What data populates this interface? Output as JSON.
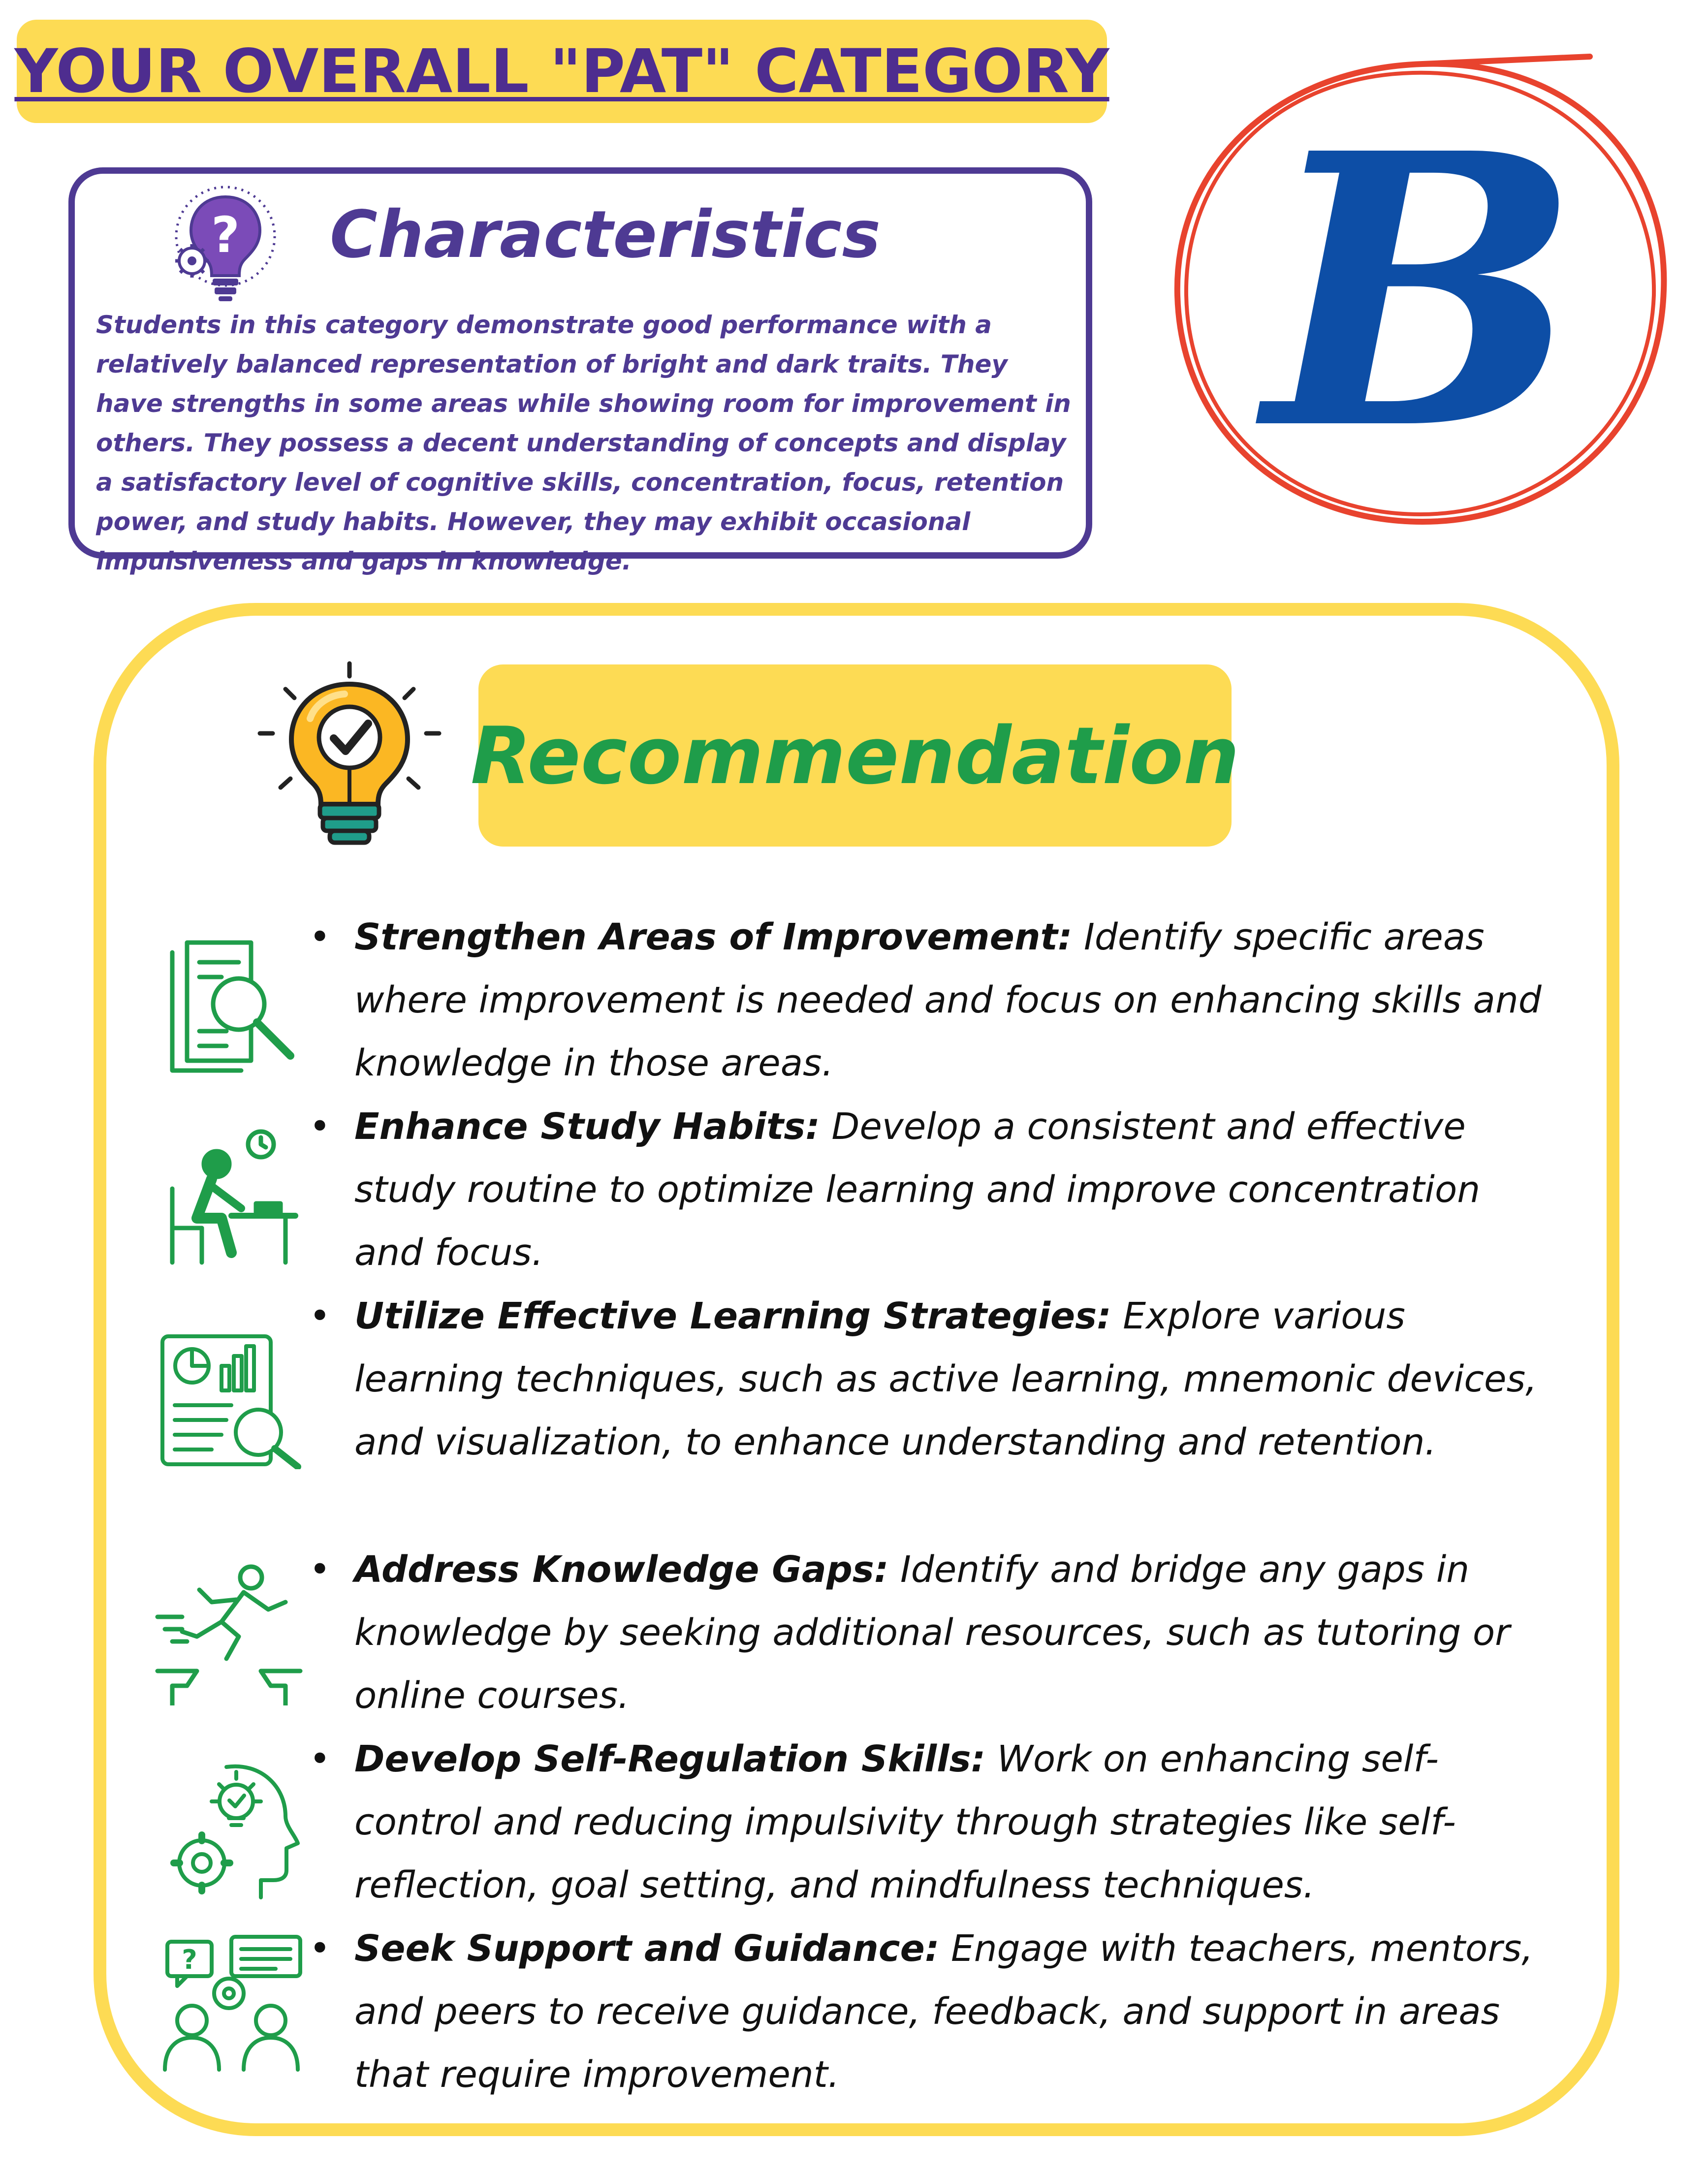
{
  "header": {
    "title": "YOUR OVERALL \"PAT\" CATEGORY"
  },
  "grade": {
    "letter": "B",
    "letter_color": "#0D4EA6",
    "circle_color": "#E8432E"
  },
  "characteristics": {
    "title": "Characteristics",
    "icon": "lightbulb-question-gear-icon",
    "body": "Students in this category demonstrate good performance with a relatively balanced representation of bright and dark traits. They have strengths in some areas while showing room for improvement in others. They possess a decent understanding of concepts and display a satisfactory level of cognitive skills, concentration, focus, retention power, and study habits. However, they may exhibit occasional impulsiveness and gaps in knowledge."
  },
  "recommendation": {
    "title": "Recommendation",
    "icon": "lightbulb-checkmark-icon",
    "items": [
      {
        "title": "Strengthen Areas of Improvement:",
        "text": " Identify specific areas where improvement is needed and focus on enhancing skills and knowledge in those areas.",
        "icon": "document-magnifier-icon"
      },
      {
        "title": "Enhance Study Habits:",
        "text": " Develop a consistent and effective study routine to optimize learning and improve concentration and focus.",
        "icon": "student-at-desk-clock-icon"
      },
      {
        "title": "Utilize Effective Learning Strategies:",
        "text": " Explore various learning techniques, such as active learning, mnemonic devices, and visualization, to enhance understanding and retention.",
        "icon": "report-chart-magnifier-icon"
      },
      {
        "title": "Address Knowledge Gaps:",
        "text": " Identify and bridge any gaps in knowledge by seeking additional resources, such as tutoring or online courses.",
        "icon": "person-jumping-gap-icon"
      },
      {
        "title": "Develop Self-Regulation Skills:",
        "text": " Work on enhancing self-control and reducing impulsivity through strategies like self-reflection, goal setting, and mindfulness techniques.",
        "icon": "head-lightbulb-gear-icon"
      },
      {
        "title": "Seek Support and Guidance:",
        "text": " Engage with teachers, mentors, and peers to receive guidance, feedback, and support in areas that require improvement.",
        "icon": "people-chat-gear-icon"
      }
    ]
  },
  "colors": {
    "yellow": "#FDDB54",
    "purple": "#4E3A93",
    "green": "#1F9D4A"
  }
}
